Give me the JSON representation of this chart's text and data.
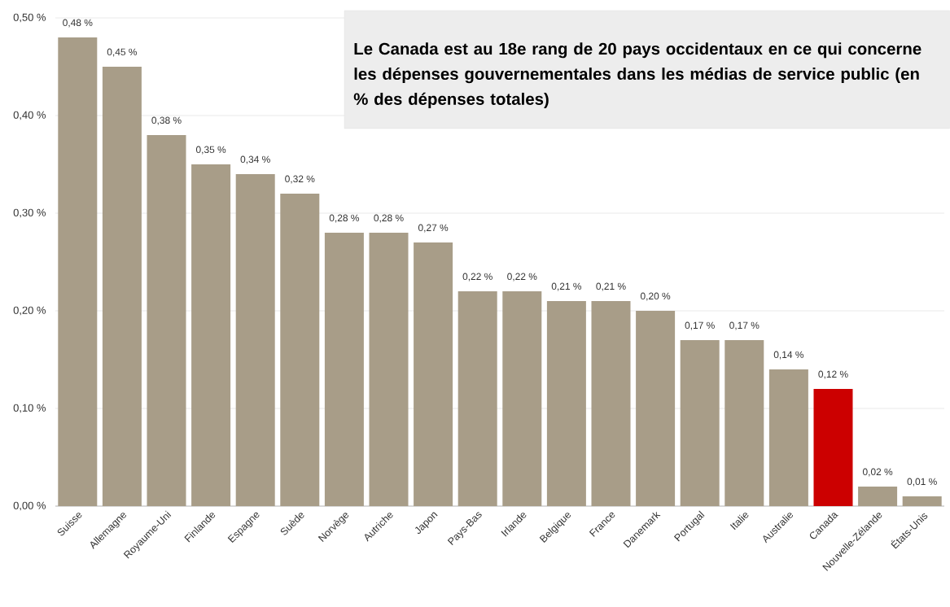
{
  "chart_data": {
    "type": "bar",
    "title": "Le Canada est au 18e rang de 20 pays occidentaux en ce qui concerne les dépenses gouvernementales dans les médias de service public (en % des dépenses totales)",
    "categories": [
      "Suisse",
      "Allemagne",
      "Royaume-Uni",
      "Finlande",
      "Espagne",
      "Suède",
      "Norvège",
      "Autriche",
      "Japon",
      "Pays-Bas",
      "Irlande",
      "Belgique",
      "France",
      "Danemark",
      "Portugal",
      "Italie",
      "Australie",
      "Canada",
      "Nouvelle-Zélande",
      "États-Unis"
    ],
    "values": [
      0.48,
      0.45,
      0.38,
      0.35,
      0.34,
      0.32,
      0.28,
      0.28,
      0.27,
      0.22,
      0.22,
      0.21,
      0.21,
      0.2,
      0.17,
      0.17,
      0.14,
      0.12,
      0.02,
      0.01
    ],
    "colors": [
      "#a89d88",
      "#a89d88",
      "#a89d88",
      "#a89d88",
      "#a89d88",
      "#a89d88",
      "#a89d88",
      "#a89d88",
      "#a89d88",
      "#a89d88",
      "#a89d88",
      "#a89d88",
      "#a89d88",
      "#a89d88",
      "#a89d88",
      "#a89d88",
      "#a89d88",
      "#cc0000",
      "#a89d88",
      "#a89d88"
    ],
    "value_labels": [
      "0,48 %",
      "0,45 %",
      "0,38 %",
      "0,35 %",
      "0,34 %",
      "0,32 %",
      "0,28 %",
      "0,28 %",
      "0,27 %",
      "0,22 %",
      "0,22 %",
      "0,21 %",
      "0,21 %",
      "0,20 %",
      "0,17 %",
      "0,17 %",
      "0,14 %",
      "0,12 %",
      "0,02 %",
      "0,01 %"
    ],
    "ylim": [
      0,
      0.5
    ],
    "yticks": [
      {
        "value": 0,
        "label": "0,00 %"
      },
      {
        "value": 0.1,
        "label": "0,10 %"
      },
      {
        "value": 0.2,
        "label": "0,20 %"
      },
      {
        "value": 0.3,
        "label": "0,30 %"
      },
      {
        "value": 0.4,
        "label": "0,40 %"
      },
      {
        "value": 0.5,
        "label": "0,50 %"
      }
    ],
    "grid": "y"
  }
}
